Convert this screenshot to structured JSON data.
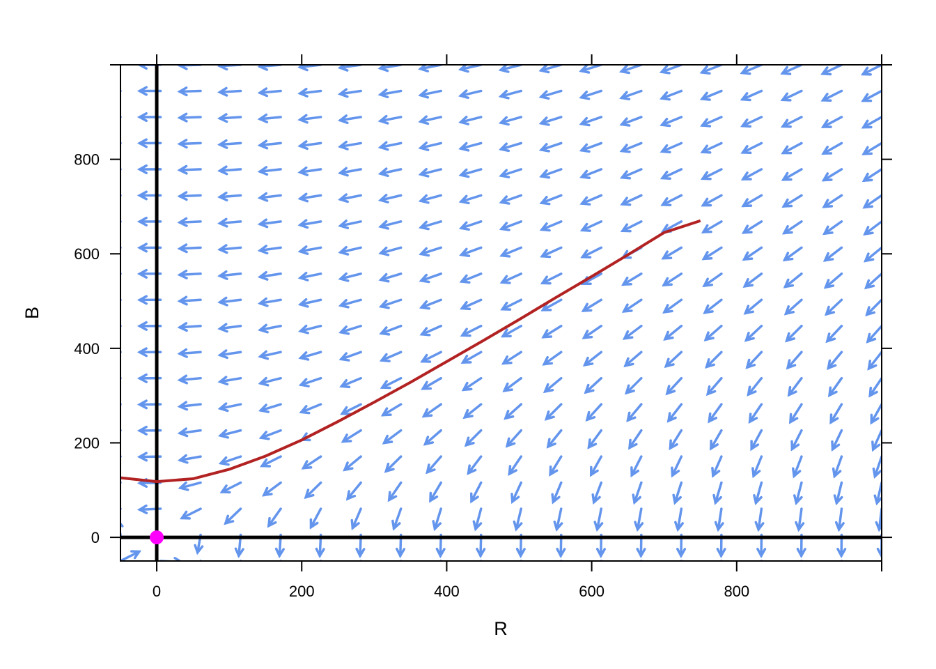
{
  "chart_data": {
    "type": "vector-field",
    "xlabel": "R",
    "ylabel": "B",
    "xlim": [
      -50,
      1000
    ],
    "ylim": [
      -50,
      1000
    ],
    "x_ticks": [
      0,
      200,
      400,
      600,
      800
    ],
    "y_ticks": [
      0,
      200,
      400,
      600,
      800
    ],
    "grid": false,
    "field": {
      "grid_points_per_axis": 20,
      "dR_dt": "-1 * B",
      "dB_dt": "-0.77 * R",
      "color": "#6495ED"
    },
    "trajectory": {
      "color": "#B22222",
      "points": [
        [
          -50,
          126
        ],
        [
          0,
          118
        ],
        [
          50,
          124
        ],
        [
          100,
          144
        ],
        [
          150,
          172
        ],
        [
          200,
          206
        ],
        [
          250,
          245
        ],
        [
          300,
          286
        ],
        [
          350,
          328
        ],
        [
          400,
          372
        ],
        [
          450,
          416
        ],
        [
          500,
          461
        ],
        [
          550,
          507
        ],
        [
          600,
          552
        ],
        [
          650,
          598
        ],
        [
          700,
          645
        ],
        [
          750,
          670
        ]
      ]
    },
    "equilibrium": {
      "R": 0,
      "B": 0,
      "color": "#FF00FF"
    },
    "reference_lines": {
      "R": 0,
      "B": 0,
      "color": "#000000"
    }
  }
}
